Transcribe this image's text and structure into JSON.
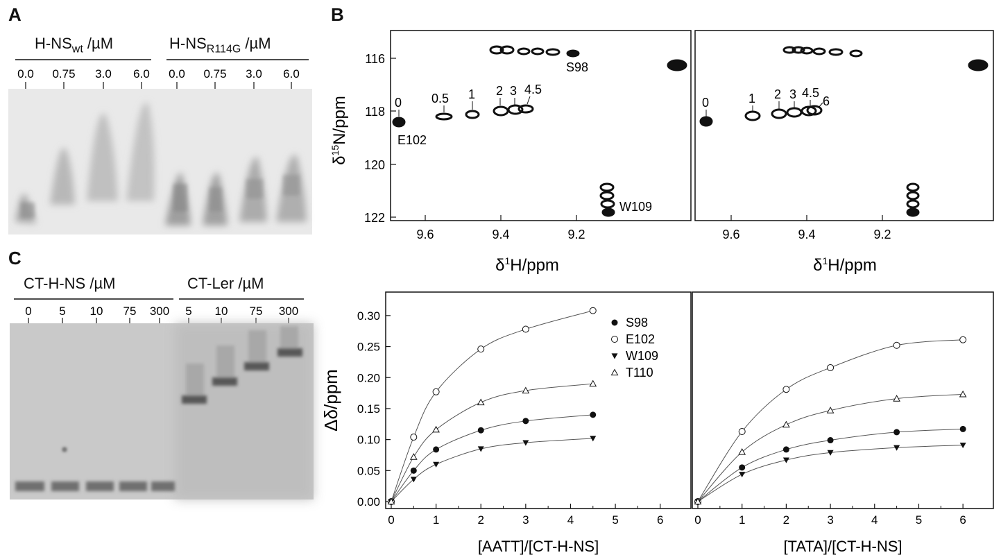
{
  "panels": {
    "A": "A",
    "B": "B",
    "C": "C"
  },
  "gelA": {
    "group1": {
      "prefix": "H-NS",
      "sub": "wt",
      "unit": "/µM"
    },
    "group2": {
      "prefix": "H-NS",
      "sub": "R114G",
      "unit": "/µM"
    },
    "lanes1": [
      "0.0",
      "0.75",
      "3.0",
      "6.0"
    ],
    "lanes2": [
      "0.0",
      "0.75",
      "3.0",
      "6.0"
    ]
  },
  "gelC": {
    "group1": "CT-H-NS /µM",
    "group2": "CT-Ler /µM",
    "lanes1": [
      "0",
      "5",
      "10",
      "75",
      "300"
    ],
    "lanes2": [
      "5",
      "10",
      "75",
      "300"
    ]
  },
  "nmr": {
    "ylabel_main": "δ",
    "ylabel_sup": "15",
    "ylabel_rest": "N/ppm",
    "xlabel_main": "δ",
    "xlabel_sup": "1",
    "xlabel_rest": "H/ppm",
    "y_ticks": [
      "116",
      "118",
      "120",
      "122"
    ],
    "x_ticks": [
      "9.6",
      "9.4",
      "9.2"
    ],
    "left_labels": {
      "e102": "E102",
      "s98": "S98",
      "w109": "W109"
    },
    "left_points": [
      "0",
      "0.5",
      "1",
      "2",
      "3",
      "4.5"
    ],
    "right_points": [
      "0",
      "1",
      "2",
      "3",
      "4.5",
      "6"
    ]
  },
  "chart_data": [
    {
      "type": "scatter",
      "xlabel": "[AATT]/[CT-H-NS]",
      "ylabel": "Δδ/ppm",
      "xlim": [
        0,
        6.5
      ],
      "ylim": [
        0,
        0.32
      ],
      "x_ticks": [
        "0",
        "1",
        "2",
        "3",
        "4",
        "5",
        "6"
      ],
      "y_ticks": [
        "0.00",
        "0.05",
        "0.10",
        "0.15",
        "0.20",
        "0.25",
        "0.30"
      ],
      "x": [
        0,
        0.5,
        1,
        2,
        3,
        4.5
      ],
      "series": [
        {
          "name": "S98",
          "marker": "filled-circle",
          "values": [
            0,
            0.05,
            0.084,
            0.115,
            0.13,
            0.14
          ]
        },
        {
          "name": "E102",
          "marker": "open-circle",
          "values": [
            0,
            0.104,
            0.177,
            0.246,
            0.278,
            0.308
          ]
        },
        {
          "name": "W109",
          "marker": "filled-triangle-down",
          "values": [
            0,
            0.036,
            0.06,
            0.085,
            0.095,
            0.102
          ]
        },
        {
          "name": "T110",
          "marker": "open-triangle-up",
          "values": [
            0,
            0.072,
            0.116,
            0.16,
            0.179,
            0.19
          ]
        }
      ],
      "legend_position": "top-right"
    },
    {
      "type": "scatter",
      "xlabel": "[TATA]/[CT-H-NS]",
      "ylabel": "",
      "xlim": [
        0,
        6.5
      ],
      "ylim": [
        0,
        0.32
      ],
      "x_ticks": [
        "0",
        "1",
        "2",
        "3",
        "4",
        "5",
        "6"
      ],
      "x": [
        0,
        1,
        2,
        3,
        4.5,
        6
      ],
      "series": [
        {
          "name": "S98",
          "marker": "filled-circle",
          "values": [
            0,
            0.055,
            0.084,
            0.099,
            0.112,
            0.117
          ]
        },
        {
          "name": "E102",
          "marker": "open-circle",
          "values": [
            0,
            0.113,
            0.181,
            0.216,
            0.252,
            0.261
          ]
        },
        {
          "name": "W109",
          "marker": "filled-triangle-down",
          "values": [
            0,
            0.044,
            0.067,
            0.079,
            0.087,
            0.091
          ]
        },
        {
          "name": "T110",
          "marker": "open-triangle-up",
          "values": [
            0,
            0.08,
            0.124,
            0.147,
            0.166,
            0.173
          ]
        }
      ]
    }
  ]
}
